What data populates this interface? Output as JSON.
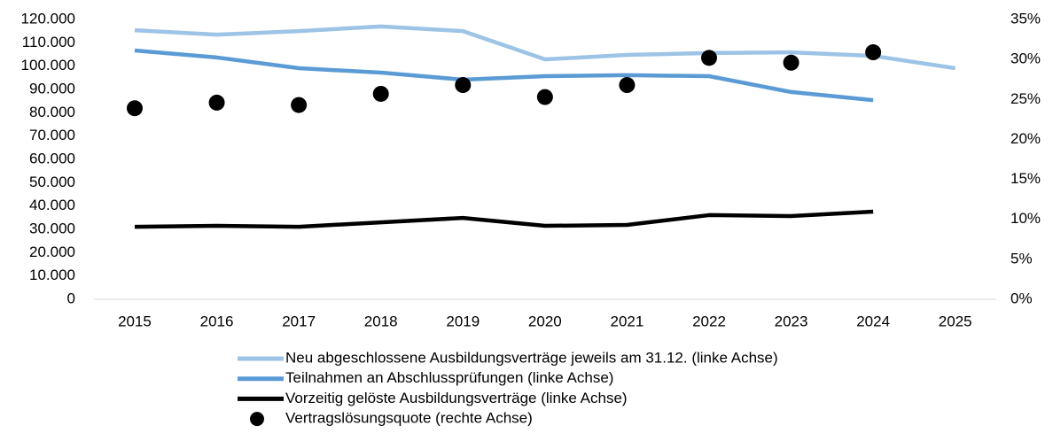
{
  "chart_data": {
    "type": "line",
    "categories": [
      "2015",
      "2016",
      "2017",
      "2018",
      "2019",
      "2020",
      "2021",
      "2022",
      "2023",
      "2024",
      "2025"
    ],
    "series": [
      {
        "name": "Neu abgeschlossene Ausbildungsverträge jeweils am 31.12. (linke Achse)",
        "color": "#9dc3e6",
        "mode": "line",
        "values": [
          115400,
          113500,
          115000,
          117000,
          115000,
          102900,
          104800,
          105600,
          105900,
          104400,
          99100
        ]
      },
      {
        "name": "Teilnahmen an Abschlussprüfungen (linke Achse)",
        "color": "#5b9bd5",
        "mode": "line",
        "values": [
          106700,
          103700,
          99100,
          97200,
          94200,
          95700,
          96100,
          95700,
          88900,
          85400,
          null
        ]
      },
      {
        "name": "Vorzeitig gelöste Ausbildungsverträge (linke Achse)",
        "color": "#000000",
        "mode": "line",
        "values": [
          31100,
          31500,
          31100,
          33000,
          34900,
          31500,
          31900,
          36100,
          35700,
          37600,
          null
        ]
      },
      {
        "name": "Vertragslösungsquote (rechte Achse)",
        "color": "#000000",
        "mode": "markers",
        "axis": "y2",
        "values": [
          23.9,
          24.6,
          24.3,
          25.7,
          26.8,
          25.3,
          26.8,
          30.2,
          29.6,
          30.9,
          null
        ]
      }
    ],
    "ylim": [
      0,
      120000
    ],
    "yticks": [
      0,
      {
        "value": 10000,
        "label": "10.000"
      },
      {
        "value": 20000,
        "label": "20.000"
      },
      {
        "value": 30000,
        "label": "30.000"
      },
      {
        "value": 40000,
        "label": "40.000"
      },
      {
        "value": 50000,
        "label": "50.000"
      },
      {
        "value": 60000,
        "label": "60.000"
      },
      {
        "value": 70000,
        "label": "70.000"
      },
      {
        "value": 80000,
        "label": "80.000"
      },
      {
        "value": 90000,
        "label": "90.000"
      },
      {
        "value": 100000,
        "label": "100.000"
      },
      {
        "value": 110000,
        "label": "110.000"
      },
      {
        "value": 120000,
        "label": "120.000"
      }
    ],
    "y2lim": [
      0,
      35
    ],
    "y2ticks": [
      {
        "value": 0,
        "label": "0%"
      },
      {
        "value": 5,
        "label": "5%"
      },
      {
        "value": 10,
        "label": "10%"
      },
      {
        "value": 15,
        "label": "15%"
      },
      {
        "value": 20,
        "label": "20%"
      },
      {
        "value": 25,
        "label": "25%"
      },
      {
        "value": 30,
        "label": "30%"
      },
      {
        "value": 35,
        "label": "35%"
      }
    ],
    "grid": false,
    "legend": "bottom"
  }
}
